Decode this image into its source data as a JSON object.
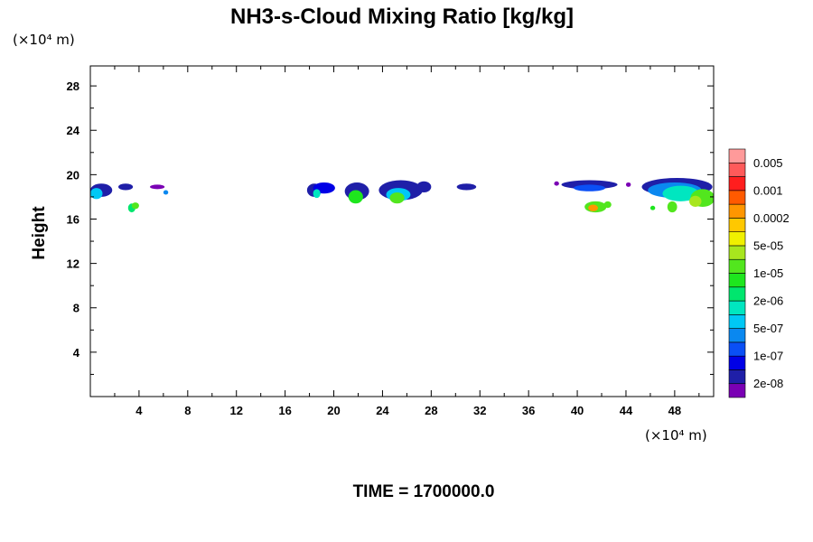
{
  "chart_data": {
    "type": "heatmap",
    "title": "NH3-s-Cloud Mixing Ratio [kg/kg]",
    "ylabel": "Height",
    "x_unit_label": "(×10⁴ m)",
    "y_unit_label": "(×10⁴ m)",
    "xlim": [
      0,
      51.2
    ],
    "ylim": [
      0,
      29.8
    ],
    "xticks": [
      4,
      8,
      12,
      16,
      20,
      24,
      28,
      32,
      36,
      40,
      44,
      48
    ],
    "xtick_labels": [
      "4",
      "8",
      "12",
      "16",
      "20",
      "24",
      "28",
      "32",
      "36",
      "40",
      "44",
      "48"
    ],
    "yticks": [
      4,
      8,
      12,
      16,
      20,
      24,
      28
    ],
    "ytick_labels": [
      "4",
      "8",
      "12",
      "16",
      "20",
      "24",
      "28"
    ],
    "grid": false,
    "colorbar": {
      "position": "right",
      "colors": [
        "#7a00b4",
        "#1f1fa8",
        "#0000e6",
        "#0a4ff5",
        "#0a88f0",
        "#00c8f5",
        "#00e6c0",
        "#00e66e",
        "#1ee61e",
        "#52e61e",
        "#a8e61e",
        "#f0f000",
        "#ffc800",
        "#ff9600",
        "#ff5a00",
        "#ff1e1e",
        "#ff5a5a",
        "#ff9a9a"
      ],
      "labels": [
        "2e-08",
        "1e-07",
        "5e-07",
        "2e-06",
        "1e-05",
        "5e-05",
        "0.0002",
        "0.001",
        "0.005"
      ]
    },
    "regions": [
      {
        "x": 0.9,
        "y": 18.6,
        "rx": 0.9,
        "ry": 0.6,
        "level": 1
      },
      {
        "x": 0.5,
        "y": 18.3,
        "rx": 0.5,
        "ry": 0.5,
        "level": 5
      },
      {
        "x": 2.9,
        "y": 18.9,
        "rx": 0.6,
        "ry": 0.3,
        "level": 1
      },
      {
        "x": 3.4,
        "y": 17.0,
        "rx": 0.3,
        "ry": 0.4,
        "level": 7
      },
      {
        "x": 3.7,
        "y": 17.2,
        "rx": 0.3,
        "ry": 0.3,
        "level": 9
      },
      {
        "x": 5.5,
        "y": 18.9,
        "rx": 0.6,
        "ry": 0.2,
        "level": 0
      },
      {
        "x": 6.2,
        "y": 18.4,
        "rx": 0.2,
        "ry": 0.2,
        "level": 4
      },
      {
        "x": 18.4,
        "y": 18.6,
        "rx": 0.6,
        "ry": 0.6,
        "level": 1
      },
      {
        "x": 19.2,
        "y": 18.8,
        "rx": 0.9,
        "ry": 0.5,
        "level": 2
      },
      {
        "x": 18.6,
        "y": 18.3,
        "rx": 0.3,
        "ry": 0.4,
        "level": 6
      },
      {
        "x": 21.9,
        "y": 18.5,
        "rx": 1.0,
        "ry": 0.8,
        "level": 1
      },
      {
        "x": 21.8,
        "y": 18.0,
        "rx": 0.6,
        "ry": 0.6,
        "level": 8
      },
      {
        "x": 25.5,
        "y": 18.6,
        "rx": 1.8,
        "ry": 0.9,
        "level": 1
      },
      {
        "x": 25.3,
        "y": 18.2,
        "rx": 1.0,
        "ry": 0.6,
        "level": 5
      },
      {
        "x": 25.2,
        "y": 17.9,
        "rx": 0.6,
        "ry": 0.5,
        "level": 9
      },
      {
        "x": 27.4,
        "y": 18.9,
        "rx": 0.6,
        "ry": 0.5,
        "level": 1
      },
      {
        "x": 30.9,
        "y": 18.9,
        "rx": 0.8,
        "ry": 0.3,
        "level": 1
      },
      {
        "x": 38.3,
        "y": 19.2,
        "rx": 0.2,
        "ry": 0.2,
        "level": 0
      },
      {
        "x": 41.0,
        "y": 19.1,
        "rx": 2.3,
        "ry": 0.4,
        "level": 1
      },
      {
        "x": 41.0,
        "y": 18.8,
        "rx": 1.3,
        "ry": 0.3,
        "level": 3
      },
      {
        "x": 41.5,
        "y": 17.1,
        "rx": 0.9,
        "ry": 0.5,
        "level": 9
      },
      {
        "x": 41.3,
        "y": 17.0,
        "rx": 0.4,
        "ry": 0.3,
        "level": 13
      },
      {
        "x": 42.5,
        "y": 17.3,
        "rx": 0.3,
        "ry": 0.3,
        "level": 9
      },
      {
        "x": 44.2,
        "y": 19.1,
        "rx": 0.2,
        "ry": 0.2,
        "level": 0
      },
      {
        "x": 48.2,
        "y": 18.9,
        "rx": 2.9,
        "ry": 0.8,
        "level": 1
      },
      {
        "x": 48.0,
        "y": 18.6,
        "rx": 2.2,
        "ry": 0.7,
        "level": 4
      },
      {
        "x": 48.5,
        "y": 18.3,
        "rx": 1.5,
        "ry": 0.7,
        "level": 6
      },
      {
        "x": 50.3,
        "y": 17.9,
        "rx": 1.0,
        "ry": 0.8,
        "level": 9
      },
      {
        "x": 49.7,
        "y": 17.6,
        "rx": 0.5,
        "ry": 0.5,
        "level": 10
      },
      {
        "x": 47.8,
        "y": 17.1,
        "rx": 0.4,
        "ry": 0.5,
        "level": 9
      },
      {
        "x": 46.2,
        "y": 17.0,
        "rx": 0.2,
        "ry": 0.2,
        "level": 8
      }
    ]
  },
  "footer": {
    "time_label": "TIME = 1700000.0"
  }
}
